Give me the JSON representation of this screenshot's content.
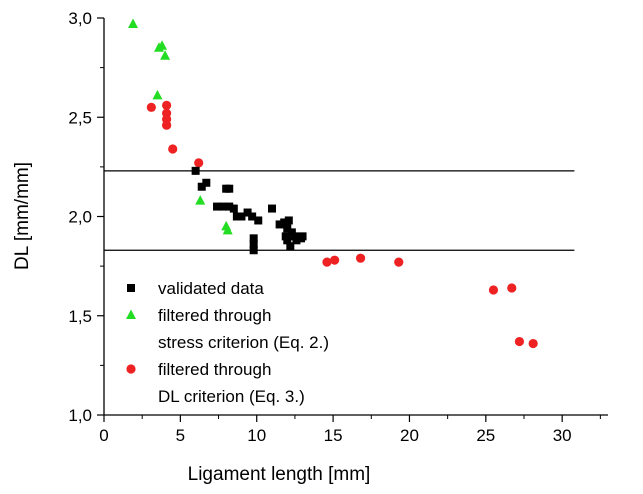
{
  "chart_data": {
    "type": "scatter",
    "title": "",
    "xlabel": "Ligament length [mm]",
    "ylabel": "DL [mm/mm]",
    "xlim": [
      0,
      33
    ],
    "ylim": [
      1.0,
      3.0
    ],
    "x_ticks": [
      0,
      5,
      10,
      15,
      20,
      25,
      30
    ],
    "x_tick_labels": [
      "0",
      "5",
      "10",
      "15",
      "20",
      "25",
      "30"
    ],
    "y_ticks": [
      1.0,
      1.5,
      2.0,
      2.5,
      3.0
    ],
    "y_tick_labels": [
      "1,0",
      "1,5",
      "2,0",
      "2,5",
      "3,0"
    ],
    "grid": false,
    "legend_position": "bottom-left",
    "reference_lines": [
      2.23,
      1.83
    ],
    "reference_lines_xmax": 30.8,
    "series": [
      {
        "name": "validated data",
        "marker": "square",
        "color": "#000000",
        "points": [
          [
            6.0,
            2.23
          ],
          [
            6.4,
            2.15
          ],
          [
            6.7,
            2.17
          ],
          [
            7.4,
            2.05
          ],
          [
            7.8,
            2.05
          ],
          [
            8.0,
            2.14
          ],
          [
            8.2,
            2.14
          ],
          [
            8.2,
            2.05
          ],
          [
            8.5,
            2.04
          ],
          [
            8.7,
            2.0
          ],
          [
            9.0,
            2.0
          ],
          [
            9.4,
            2.02
          ],
          [
            9.7,
            2.0
          ],
          [
            9.8,
            1.89
          ],
          [
            9.8,
            1.86
          ],
          [
            9.8,
            1.83
          ],
          [
            10.1,
            1.98
          ],
          [
            11.0,
            2.04
          ],
          [
            11.5,
            1.96
          ],
          [
            11.8,
            1.97
          ],
          [
            11.9,
            1.9
          ],
          [
            12.0,
            1.88
          ],
          [
            12.0,
            1.94
          ],
          [
            12.1,
            1.98
          ],
          [
            12.2,
            1.85
          ],
          [
            12.3,
            1.92
          ],
          [
            12.5,
            1.9
          ],
          [
            12.6,
            1.88
          ],
          [
            12.9,
            1.89
          ],
          [
            13.0,
            1.9
          ]
        ]
      },
      {
        "name": "filtered through stress criterion (Eq. 2.)",
        "label_lines": [
          "filtered through",
          "stress criterion (Eq. 2.)"
        ],
        "marker": "triangle",
        "color": "#22dd22",
        "points": [
          [
            1.9,
            2.97
          ],
          [
            3.5,
            2.61
          ],
          [
            3.6,
            2.85
          ],
          [
            3.8,
            2.86
          ],
          [
            4.0,
            2.81
          ],
          [
            6.3,
            2.08
          ],
          [
            8.0,
            1.95
          ],
          [
            8.1,
            1.93
          ]
        ]
      },
      {
        "name": "filtered through DL criterion (Eq. 3.)",
        "label_lines": [
          "filtered through",
          "DL criterion (Eq. 3.)"
        ],
        "marker": "circle",
        "color": "#ee2222",
        "points": [
          [
            3.1,
            2.55
          ],
          [
            4.1,
            2.56
          ],
          [
            4.1,
            2.52
          ],
          [
            4.1,
            2.49
          ],
          [
            4.1,
            2.46
          ],
          [
            4.5,
            2.34
          ],
          [
            6.2,
            2.27
          ],
          [
            14.6,
            1.77
          ],
          [
            15.1,
            1.78
          ],
          [
            16.8,
            1.79
          ],
          [
            19.3,
            1.77
          ],
          [
            25.5,
            1.63
          ],
          [
            26.7,
            1.64
          ],
          [
            27.2,
            1.37
          ],
          [
            28.1,
            1.36
          ]
        ]
      }
    ]
  }
}
